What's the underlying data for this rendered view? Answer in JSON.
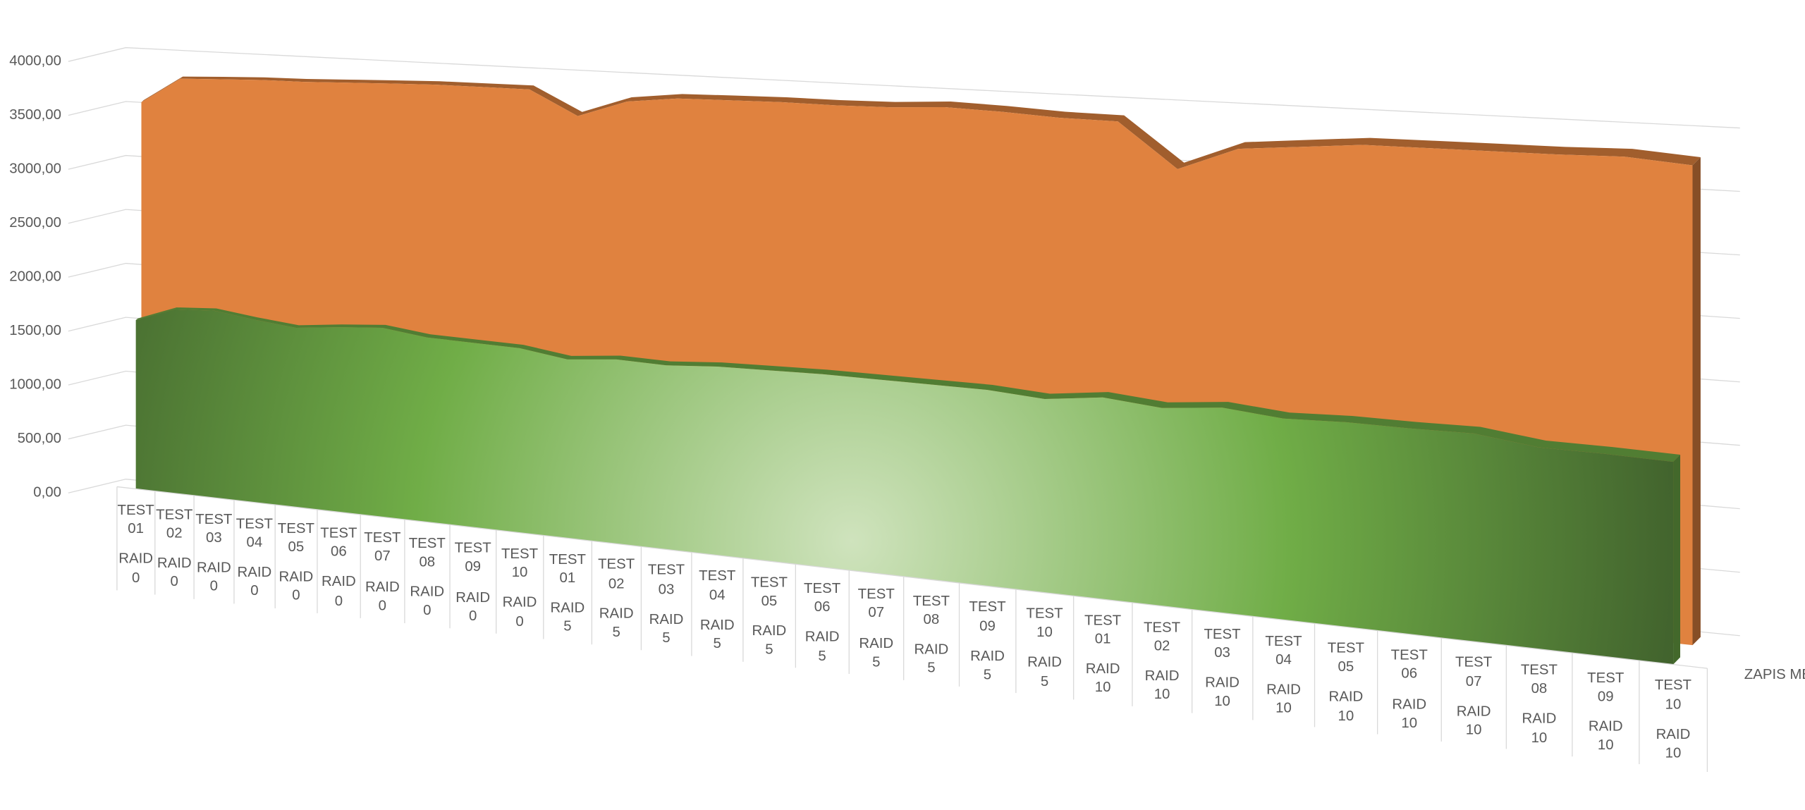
{
  "chart_data": {
    "type": "area3d",
    "categories": [
      "TEST 01",
      "TEST 02",
      "TEST 03",
      "TEST 04",
      "TEST 05",
      "TEST 06",
      "TEST 07",
      "TEST 08",
      "TEST 09",
      "TEST 10",
      "TEST 01",
      "TEST 02",
      "TEST 03",
      "TEST 04",
      "TEST 05",
      "TEST 06",
      "TEST 07",
      "TEST 08",
      "TEST 09",
      "TEST 10",
      "TEST 01",
      "TEST 02",
      "TEST 03",
      "TEST 04",
      "TEST 05",
      "TEST 06",
      "TEST 07",
      "TEST 08",
      "TEST 09",
      "TEST 10"
    ],
    "groups": [
      "RAID 0",
      "RAID 0",
      "RAID 0",
      "RAID 0",
      "RAID 0",
      "RAID 0",
      "RAID 0",
      "RAID 0",
      "RAID 0",
      "RAID 0",
      "RAID 5",
      "RAID 5",
      "RAID 5",
      "RAID 5",
      "RAID 5",
      "RAID 5",
      "RAID 5",
      "RAID 5",
      "RAID 5",
      "RAID 5",
      "RAID 10",
      "RAID 10",
      "RAID 10",
      "RAID 10",
      "RAID 10",
      "RAID 10",
      "RAID 10",
      "RAID 10",
      "RAID 10",
      "RAID 10"
    ],
    "series": [
      {
        "color": "#70ad47",
        "values": [
          1560,
          1690,
          1710,
          1660,
          1620,
          1660,
          1690,
          1640,
          1630,
          1620,
          1560,
          1600,
          1590,
          1620,
          1630,
          1640,
          1640,
          1640,
          1640,
          1610,
          1670,
          1630,
          1680,
          1640,
          1660,
          1660,
          1670,
          1610,
          1610,
          1600
        ]
      },
      {
        "name": "ZAPIS MB/S",
        "color": "#e0823f",
        "values": [
          3530,
          3760,
          3770,
          3780,
          3780,
          3790,
          3800,
          3810,
          3810,
          3810,
          3600,
          3750,
          3800,
          3810,
          3820,
          3820,
          3830,
          3860,
          3850,
          3830,
          3830,
          3470,
          3670,
          3720,
          3770,
          3780,
          3790,
          3800,
          3820,
          3790
        ]
      }
    ],
    "ylim": [
      0,
      4000
    ],
    "yticks": [
      {
        "value": 0,
        "label": "0,00"
      },
      {
        "value": 500,
        "label": "500,00"
      },
      {
        "value": 1000,
        "label": "1000,00"
      },
      {
        "value": 1500,
        "label": "1500,00"
      },
      {
        "value": 2000,
        "label": "2000,00"
      },
      {
        "value": 2500,
        "label": "2500,00"
      },
      {
        "value": 3000,
        "label": "3000,00"
      },
      {
        "value": 3500,
        "label": "3500,00"
      },
      {
        "value": 4000,
        "label": "4000,00"
      }
    ],
    "grid": true
  }
}
